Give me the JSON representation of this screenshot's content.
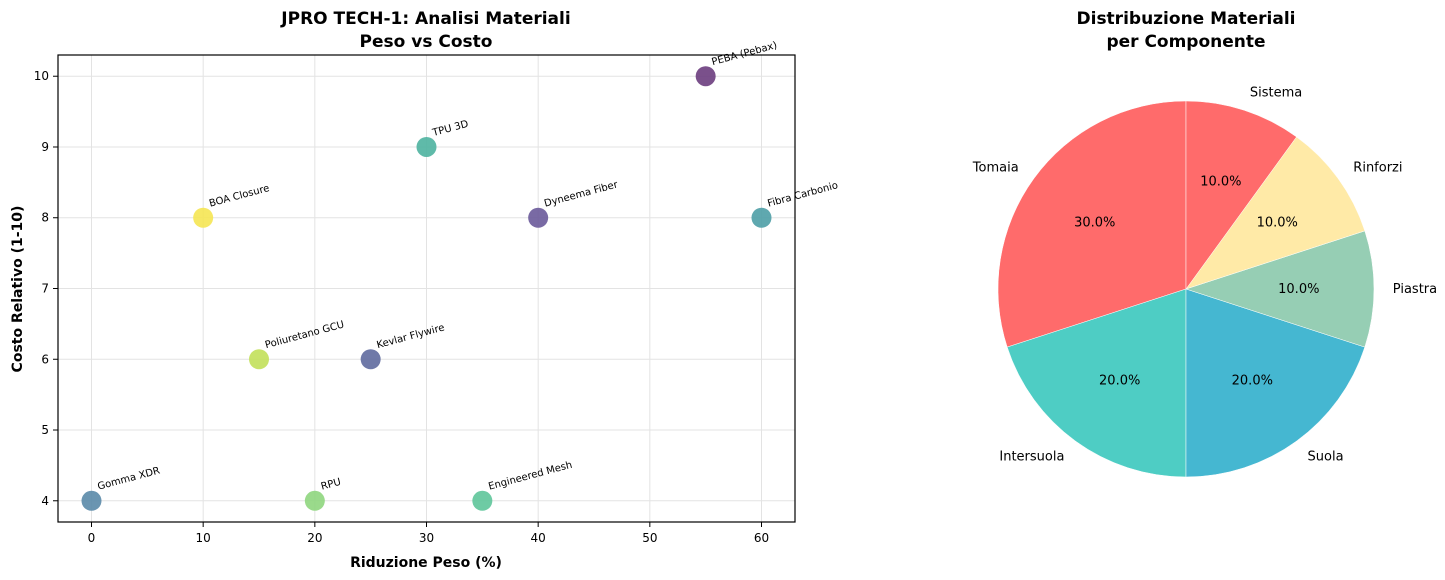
{
  "chart_data": [
    {
      "type": "scatter",
      "title": "JPRO TECH-1: Analisi Materiali",
      "subtitle": "Peso vs Costo",
      "xlabel": "Riduzione Peso (%)",
      "ylabel": "Costo Relativo (1-10)",
      "xlim": [
        -3,
        63
      ],
      "ylim": [
        3.7,
        10.3
      ],
      "xticks": [
        "0",
        "10",
        "20",
        "30",
        "40",
        "50",
        "60"
      ],
      "yticks": [
        "4",
        "5",
        "6",
        "7",
        "8",
        "9",
        "10"
      ],
      "grid": true,
      "points": [
        {
          "label": "Gomma XDR",
          "x": 0,
          "y": 4,
          "color": "#5a89a8"
        },
        {
          "label": "BOA Closure",
          "x": 10,
          "y": 8,
          "color": "#f5e553"
        },
        {
          "label": "Poliuretano GCU",
          "x": 15,
          "y": 6,
          "color": "#c2e05a"
        },
        {
          "label": "RPU",
          "x": 20,
          "y": 4,
          "color": "#8fd67e"
        },
        {
          "label": "Kevlar Flywire",
          "x": 25,
          "y": 6,
          "color": "#5f6a9e"
        },
        {
          "label": "TPU 3D",
          "x": 30,
          "y": 9,
          "color": "#4eb3a0"
        },
        {
          "label": "Engineered Mesh",
          "x": 35,
          "y": 4,
          "color": "#5ec59a"
        },
        {
          "label": "Dyneema Fiber",
          "x": 40,
          "y": 8,
          "color": "#6a5a9a"
        },
        {
          "label": "PEBA (Pebax)",
          "x": 55,
          "y": 10,
          "color": "#6b3d7e"
        },
        {
          "label": "Fibra Carbonio",
          "x": 60,
          "y": 8,
          "color": "#4e9ea6"
        }
      ]
    },
    {
      "type": "pie",
      "title": "Distribuzione Materiali",
      "subtitle": "per Componente",
      "start_angle": 90,
      "direction": "counterclockwise",
      "slices": [
        {
          "label": "Tomaia",
          "value": 30,
          "pct": "30.0%",
          "color": "#ff6b6b"
        },
        {
          "label": "Intersuola",
          "value": 20,
          "pct": "20.0%",
          "color": "#4ecdc4"
        },
        {
          "label": "Suola",
          "value": 20,
          "pct": "20.0%",
          "color": "#45b7d1"
        },
        {
          "label": "Piastra",
          "value": 10,
          "pct": "10.0%",
          "color": "#96ceb4"
        },
        {
          "label": "Rinforzi",
          "value": 10,
          "pct": "10.0%",
          "color": "#ffeaa7"
        },
        {
          "label": "Sistema",
          "value": 10,
          "pct": "10.0%",
          "color": "#ff6b6b"
        }
      ]
    }
  ]
}
